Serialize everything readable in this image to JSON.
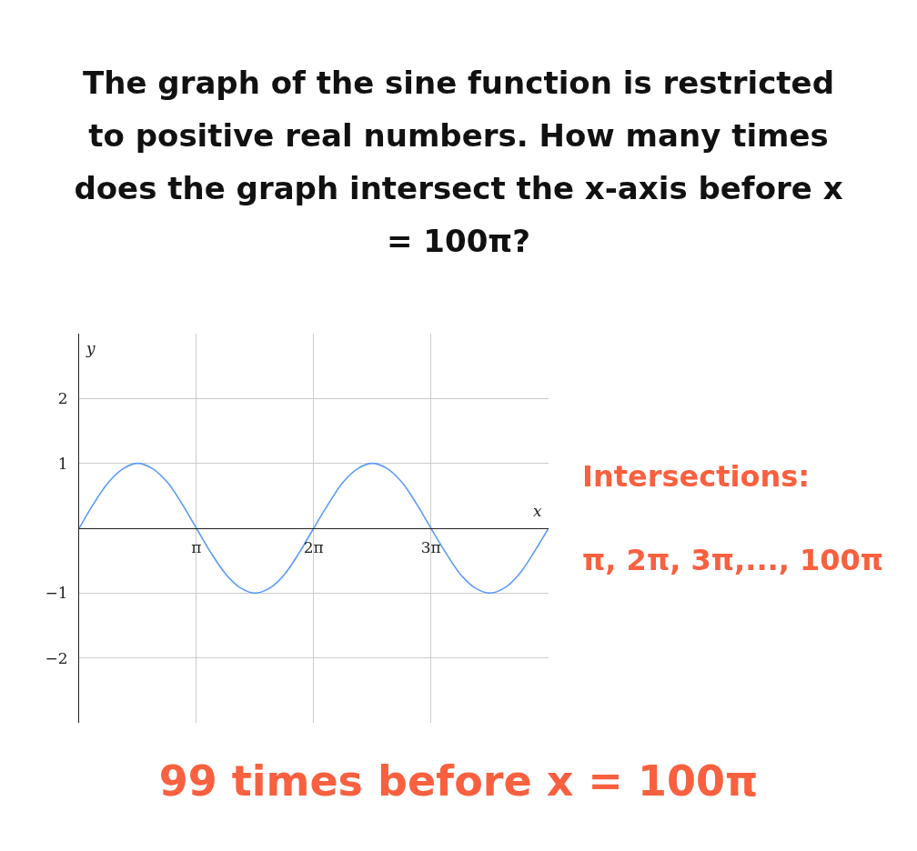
{
  "chart_data": {
    "type": "line",
    "title": "The graph of the sine function is restricted to positive real numbers. How many times does the graph intersect the x-axis before x = 100π?",
    "xlabel": "x",
    "ylabel": "y",
    "x": [
      0,
      0.39,
      0.79,
      1.18,
      1.57,
      1.96,
      2.36,
      2.75,
      3.14,
      3.53,
      3.93,
      4.32,
      4.71,
      5.11,
      5.5,
      5.89,
      6.28,
      6.68,
      7.07,
      7.46,
      7.85,
      8.25,
      8.64,
      9.03,
      9.42,
      9.82,
      10.21,
      10.6,
      11,
      11.39,
      11.78,
      12.17,
      12.57
    ],
    "series": [
      {
        "color": "#5b9bf8",
        "values": [
          0,
          0.38,
          0.71,
          0.92,
          1,
          0.92,
          0.71,
          0.38,
          0,
          -0.38,
          -0.71,
          -0.92,
          -1,
          -0.92,
          -0.71,
          -0.38,
          0,
          0.38,
          0.71,
          0.92,
          1,
          0.92,
          0.71,
          0.38,
          0,
          -0.38,
          -0.71,
          -0.92,
          -1,
          -0.92,
          -0.71,
          -0.38,
          0
        ]
      }
    ],
    "xlim": [
      0,
      12.57
    ],
    "ylim": [
      -3,
      3
    ],
    "xticks": [
      {
        "value": 3.14,
        "label": "π"
      },
      {
        "value": 6.28,
        "label": "2π"
      },
      {
        "value": 9.42,
        "label": "3π"
      }
    ],
    "yticks": [
      -2,
      -1,
      1,
      2
    ],
    "grid": true,
    "marker": "none",
    "line_style": "solid",
    "legend": false,
    "annotations": [
      "Intersections:",
      "π, 2π, 3π,..., 100π",
      "99 times before x = 100π"
    ]
  }
}
